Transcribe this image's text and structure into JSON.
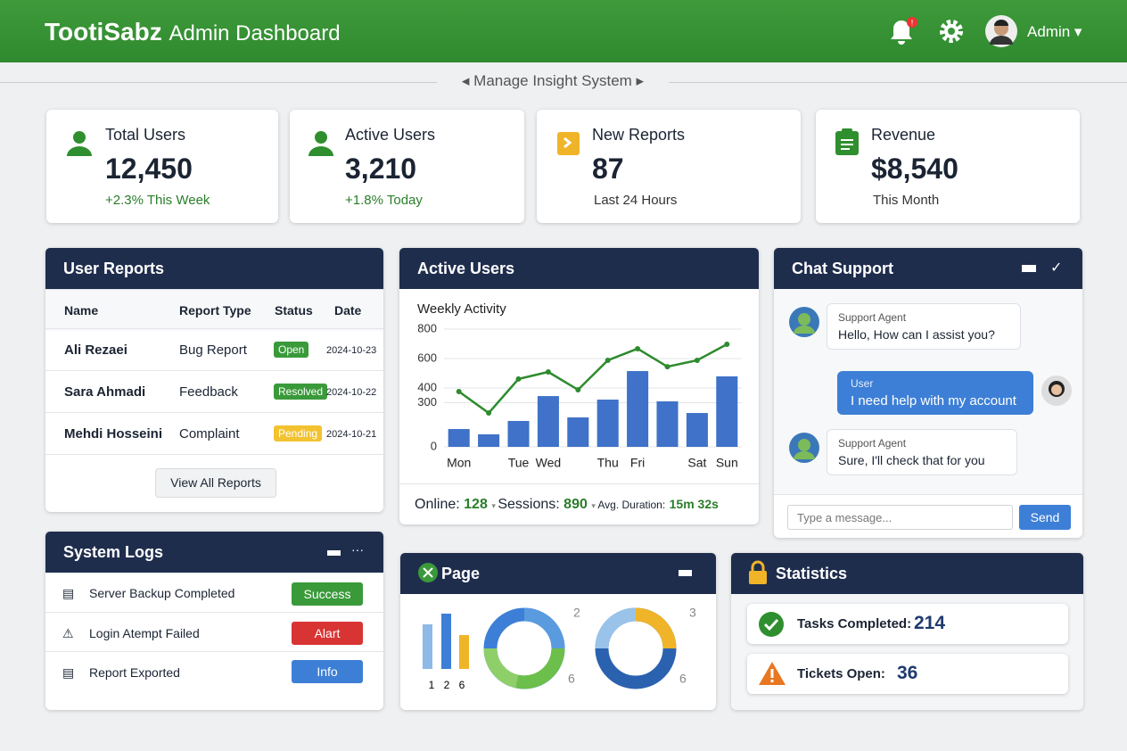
{
  "header": {
    "brand": "TootiSabz",
    "title": "Admin Dashboard",
    "notifications": "!",
    "user": "Admin"
  },
  "subtitle": "Manage Insight System",
  "stats": [
    {
      "label": "Total Users",
      "value": "12,450",
      "note": "+2.3% This Week"
    },
    {
      "label": "Active Users",
      "value": "3,210",
      "note": "+1.8% Today"
    },
    {
      "label": "New Reports",
      "value": "87",
      "note": "Last 24 Hours"
    },
    {
      "label": "Revenue",
      "value": "$8,540",
      "note": "This Month"
    }
  ],
  "user_reports": {
    "title": "User Reports",
    "columns": [
      "Name",
      "Report Type",
      "Status",
      "Date"
    ],
    "rows": [
      [
        "Ali Rezaei",
        "Bug Report",
        "Open",
        "2024-10-23"
      ],
      [
        "Sara Ahmadi",
        "Feedback",
        "Resolved",
        "2024-10-22"
      ],
      [
        "Mehdi Hosseini",
        "Complaint",
        "Pending",
        "2024-10-21"
      ]
    ],
    "button": "View All Reports"
  },
  "active_users": {
    "title": "Active Users",
    "footer": [
      {
        "label": "Online:",
        "value": "128"
      },
      {
        "label": "Sessions:",
        "value": "890"
      },
      {
        "label": "Avg. Duration:",
        "value": "15m 32s"
      }
    ]
  },
  "chart_data": {
    "type": "bar",
    "title": "Weekly Activity",
    "categories": [
      "Mon",
      null,
      "Tue",
      "Wed",
      null,
      "Thu",
      "Fri",
      null,
      "Sat",
      "Sun"
    ],
    "series": [
      {
        "type": "bar",
        "color": "#3f72c8",
        "values": [
          121,
          85,
          176,
          345,
          200,
          321,
          515,
          309,
          230,
          479
        ]
      },
      {
        "type": "line",
        "color": "#2e8b2e",
        "values": [
          376,
          230,
          461,
          509,
          388,
          588,
          667,
          545,
          588,
          697
        ]
      }
    ],
    "ylim": [
      0,
      800
    ],
    "yticks": [
      0,
      300,
      400,
      600,
      800
    ],
    "grid": true
  },
  "chat": {
    "title": "Chat Support",
    "messages": [
      {
        "sender": "Support Agent",
        "text": "Hello, How can I assist you?"
      },
      {
        "sender": "User",
        "text": "I need help with my account"
      },
      {
        "sender": "Support Agent",
        "text": "Sure, I'll check that for you"
      }
    ],
    "placeholder": "Type a message...",
    "send": "Send"
  },
  "logs": {
    "title": "System Logs",
    "items": [
      {
        "text": "Server Backup Completed",
        "status": "Success"
      },
      {
        "text": "Login Atempt Failed",
        "status": "Alart"
      },
      {
        "text": "Report Exported",
        "status": "Info"
      }
    ]
  },
  "page_panel": {
    "title": "Page",
    "bar_labels": [
      "1",
      "2",
      "6"
    ],
    "donut_labels": [
      "2",
      "6",
      "3",
      "6"
    ]
  },
  "statistics": {
    "title": "Statistics",
    "items": [
      {
        "label": "Tasks Completed:",
        "value": "214"
      },
      {
        "label": "Tickets Open:",
        "value": "36"
      }
    ]
  }
}
